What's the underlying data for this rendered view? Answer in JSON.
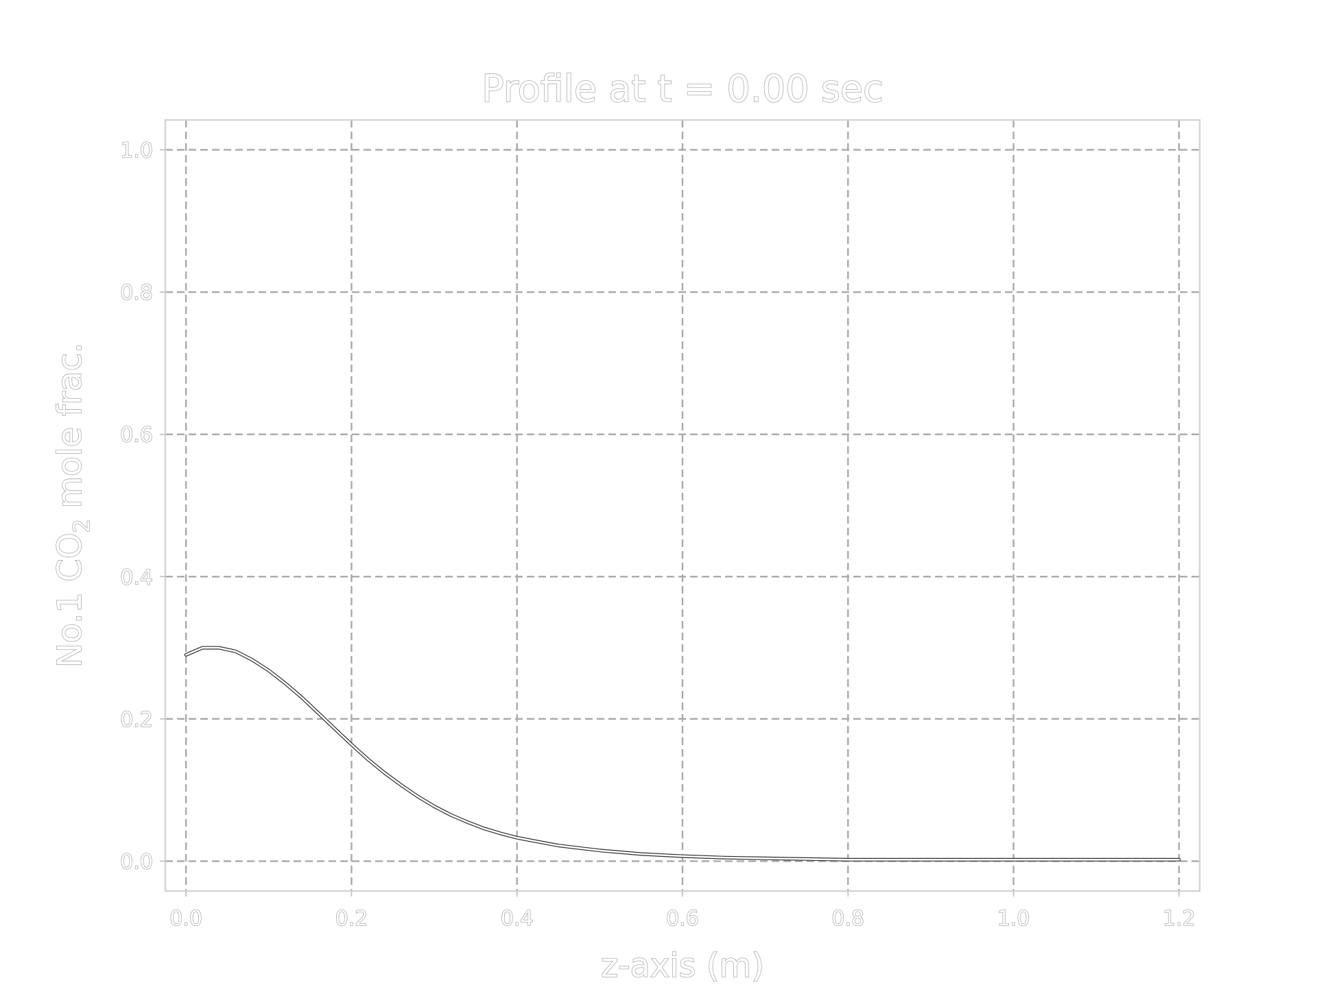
{
  "chart_data": {
    "type": "line",
    "title": "Profile at t = 0.00 sec",
    "xlabel": "z-axis (m)",
    "ylabel_prefix": "No.1 CO",
    "ylabel_subscript": "2",
    "ylabel_suffix": " mole frac.",
    "xlim": [
      -0.025,
      1.225
    ],
    "ylim": [
      -0.042,
      1.042
    ],
    "grid": true,
    "xticks": [
      0.0,
      0.2,
      0.4,
      0.6,
      0.8,
      1.0,
      1.2
    ],
    "xtick_labels": [
      "0.0",
      "0.2",
      "0.4",
      "0.6",
      "0.8",
      "1.0",
      "1.2"
    ],
    "yticks": [
      0.0,
      0.2,
      0.4,
      0.6,
      0.8,
      1.0
    ],
    "ytick_labels": [
      "0.0",
      "0.2",
      "0.4",
      "0.6",
      "0.8",
      "1.0"
    ],
    "series": [
      {
        "x": [
          0.0,
          0.02,
          0.04,
          0.06,
          0.08,
          0.1,
          0.12,
          0.14,
          0.16,
          0.18,
          0.2,
          0.22,
          0.24,
          0.26,
          0.28,
          0.3,
          0.32,
          0.34,
          0.36,
          0.38,
          0.4,
          0.45,
          0.5,
          0.55,
          0.6,
          0.65,
          0.7,
          0.75,
          0.8,
          0.85,
          0.9,
          0.95,
          1.0,
          1.05,
          1.1,
          1.15,
          1.2
        ],
        "y": [
          0.29,
          0.3,
          0.3,
          0.295,
          0.283,
          0.268,
          0.25,
          0.23,
          0.208,
          0.186,
          0.164,
          0.143,
          0.124,
          0.107,
          0.091,
          0.077,
          0.065,
          0.055,
          0.046,
          0.039,
          0.033,
          0.022,
          0.015,
          0.01,
          0.007,
          0.005,
          0.004,
          0.003,
          0.002,
          0.002,
          0.002,
          0.002,
          0.002,
          0.002,
          0.002,
          0.002,
          0.002
        ]
      }
    ]
  }
}
